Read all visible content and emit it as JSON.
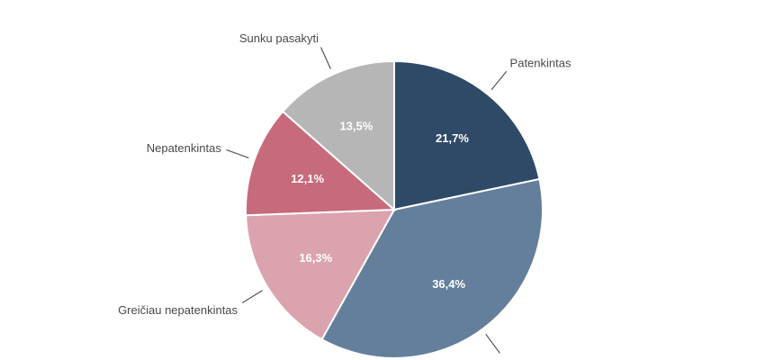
{
  "chart_data": {
    "type": "pie",
    "title": "",
    "start_angle_deg": 0,
    "direction": "clockwise",
    "slices": [
      {
        "label": "Patenkintas",
        "value": 21.7,
        "display": "21,7%",
        "color": "#2e4a67"
      },
      {
        "label": "",
        "value": 36.4,
        "display": "36,4%",
        "color": "#647f9c"
      },
      {
        "label": "Greičiau nepatenkintas",
        "value": 16.3,
        "display": "16,3%",
        "color": "#dba3ae"
      },
      {
        "label": "Nepatenkintas",
        "value": 12.1,
        "display": "12,1%",
        "color": "#c76a7b"
      },
      {
        "label": "Sunku pasakyti",
        "value": 13.5,
        "display": "13,5%",
        "color": "#b6b6b6"
      }
    ]
  }
}
